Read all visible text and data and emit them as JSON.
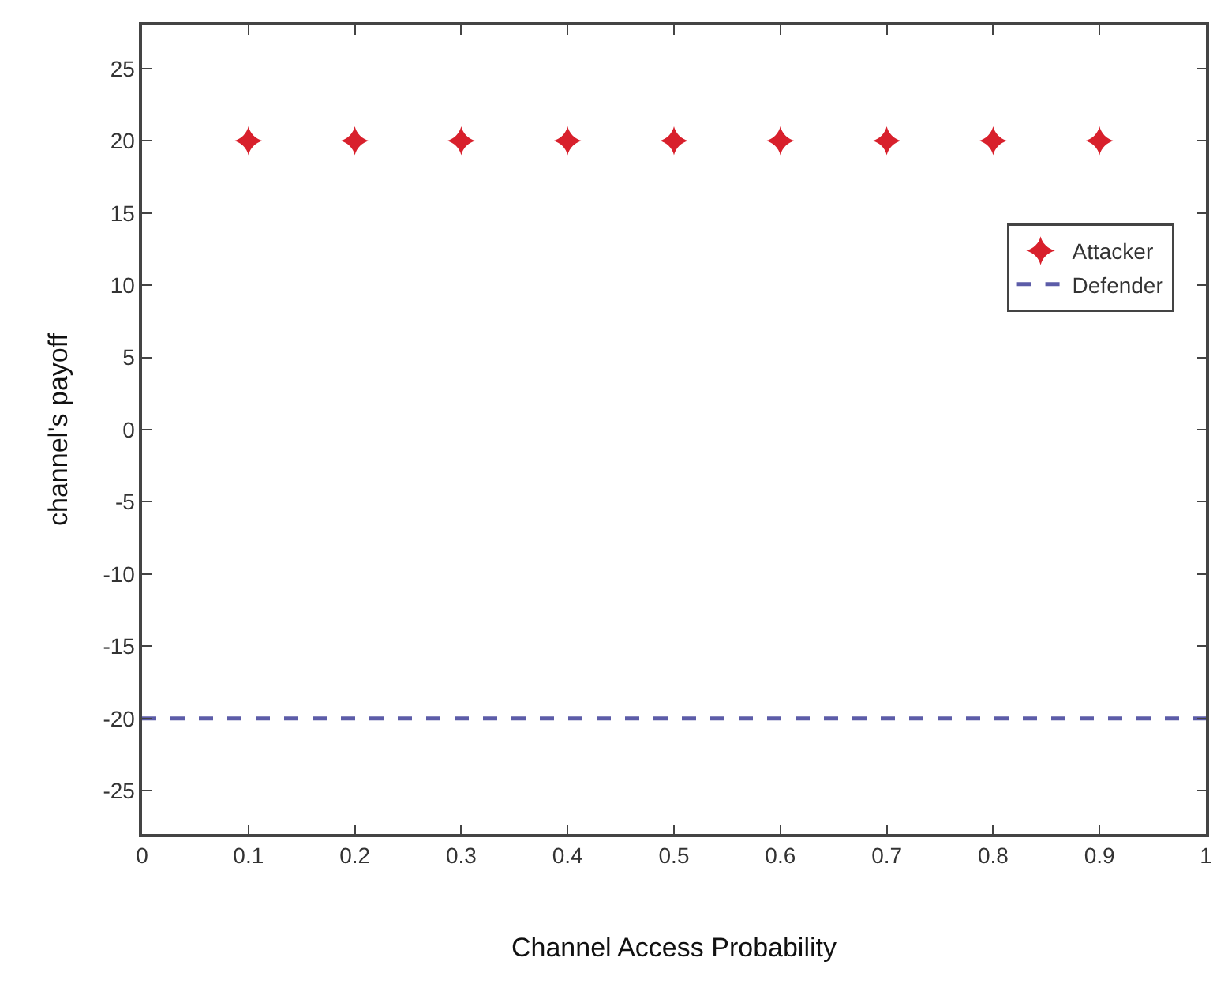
{
  "chart_data": {
    "type": "scatter",
    "xlabel": "Channel Access Probability",
    "ylabel": "channel's payoff",
    "xlim": [
      0,
      1
    ],
    "xticks": [
      0,
      0.1,
      0.2,
      0.3,
      0.4,
      0.5,
      0.6,
      0.7,
      0.8,
      0.9,
      1
    ],
    "ylim": [
      -28,
      28
    ],
    "yticks": [
      -25,
      -20,
      -15,
      -10,
      -5,
      0,
      5,
      10,
      15,
      20,
      25
    ],
    "grid": false,
    "legend": "right",
    "series": [
      {
        "name": "Attacker",
        "marker": "star",
        "color": "#d8202c",
        "x": [
          0.1,
          0.2,
          0.3,
          0.4,
          0.5,
          0.6,
          0.7,
          0.8,
          0.9
        ],
        "values": [
          20,
          20,
          20,
          20,
          20,
          20,
          20,
          20,
          20
        ]
      },
      {
        "name": "Defender",
        "type": "line",
        "line_style": "dashed",
        "marker": "none",
        "color": "#5c5ca8",
        "x": [
          0,
          1
        ],
        "values": [
          -20,
          -20
        ]
      }
    ]
  }
}
